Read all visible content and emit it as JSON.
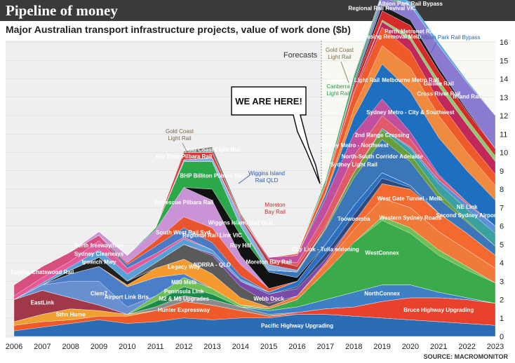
{
  "chart_data": {
    "type": "area",
    "title": "Pipeline of money",
    "subtitle": "Major Australian transport infrastructure projects, value of work done ($b)",
    "x": [
      2006,
      2007,
      2008,
      2009,
      2010,
      2011,
      2012,
      2013,
      2014,
      2015,
      2016,
      2017,
      2018,
      2019,
      2020,
      2021,
      2022,
      2023
    ],
    "ylim": [
      0,
      16
    ],
    "ytick_labels": [
      "0",
      "1",
      "2",
      "3",
      "4",
      "5",
      "6",
      "7",
      "8",
      "9",
      "10",
      "11",
      "12",
      "13",
      "14",
      "15",
      "16"
    ],
    "xtick_labels": [
      "2006",
      "2007",
      "2008",
      "2009",
      "2010",
      "2011",
      "2012",
      "2013",
      "2014",
      "2015",
      "2016",
      "2017",
      "2018",
      "2019",
      "2020",
      "2021",
      "2022",
      "2023"
    ],
    "forecast_from": 2017,
    "forecast_label": "Forecasts",
    "grid": true,
    "source": "SOURCE: MACROMONITOR",
    "series": [
      {
        "name": "Pacific Highway Upgrading",
        "color": "#2a6db5",
        "values": [
          0.3,
          0.5,
          0.7,
          0.9,
          0.7,
          0.8,
          1.0,
          0.9,
          1.0,
          1.0,
          1.2,
          1.2,
          1.1,
          1.0,
          0.9,
          0.8,
          0.7,
          0.6
        ]
      },
      {
        "name": "Hunter Expressway",
        "color": "#ef5a2a",
        "values": [
          0.3,
          0.3,
          0.2,
          0.2,
          0.4,
          0.6,
          0.9,
          0.8,
          0.4,
          0.1,
          0,
          0,
          0,
          0,
          0,
          0,
          0,
          0
        ]
      },
      {
        "name": "Bruce Highway Upgrading",
        "color": "#e8412c",
        "values": [
          0,
          0,
          0,
          0,
          0,
          0,
          0,
          0,
          0,
          0,
          0.1,
          0.3,
          0.5,
          0.9,
          1.2,
          1.3,
          1.3,
          1.2
        ]
      },
      {
        "name": "Sthn Hume",
        "color": "#f0a030",
        "values": [
          0.2,
          0.4,
          0.6,
          0.3,
          0.1,
          0,
          0,
          0,
          0,
          0,
          0,
          0,
          0,
          0,
          0,
          0,
          0,
          0
        ]
      },
      {
        "name": "M2 & M5 Upgrades",
        "color": "#8a8a8a",
        "values": [
          0,
          0,
          0,
          0,
          0,
          0.2,
          0.3,
          0.3,
          0.2,
          0.1,
          0,
          0,
          0,
          0,
          0,
          0,
          0,
          0
        ]
      },
      {
        "name": "NorthConnex",
        "color": "#3f7fc6",
        "values": [
          0,
          0,
          0,
          0,
          0,
          0,
          0,
          0,
          0,
          0.2,
          0.3,
          0.5,
          0.8,
          0.9,
          0.7,
          0.3,
          0.1,
          0
        ]
      },
      {
        "name": "EastLink",
        "color": "#a03848",
        "values": [
          1.2,
          1.3,
          0.6,
          0.3,
          0,
          0,
          0,
          0,
          0,
          0,
          0,
          0,
          0,
          0,
          0,
          0,
          0,
          0
        ]
      },
      {
        "name": "Peninsula Link",
        "color": "#1b8a4a",
        "values": [
          0,
          0,
          0,
          0,
          0,
          0.3,
          0.5,
          0.3,
          0,
          0,
          0,
          0,
          0,
          0,
          0,
          0,
          0,
          0
        ]
      },
      {
        "name": "WestConnex",
        "color": "#3aaa4a",
        "values": [
          0,
          0,
          0,
          0,
          0,
          0,
          0,
          0,
          0,
          0.1,
          0.4,
          1.5,
          2.7,
          3.5,
          2.8,
          2.0,
          1.5,
          1.1
        ]
      },
      {
        "name": "M80 Melb",
        "color": "#6fbf59",
        "values": [
          0,
          0,
          0,
          0,
          0,
          0.3,
          0.5,
          0.3,
          0.1,
          0,
          0,
          0,
          0,
          0.2,
          0.3,
          0.3,
          0.2,
          0
        ]
      },
      {
        "name": "Clem7",
        "color": "#6a8fd0",
        "values": [
          0,
          0.3,
          0.9,
          1.3,
          0.4,
          0,
          0,
          0,
          0,
          0,
          0,
          0,
          0,
          0,
          0,
          0,
          0,
          0
        ]
      },
      {
        "name": "Airport Link Bris.",
        "color": "#4a7ec8",
        "values": [
          0,
          0,
          0.4,
          0.8,
          1.1,
          1.0,
          0.2,
          0,
          0,
          0,
          0,
          0,
          0,
          0,
          0,
          0,
          0,
          0
        ]
      },
      {
        "name": "Western Sydney Roads",
        "color": "#f07a3a",
        "values": [
          0,
          0,
          0,
          0,
          0,
          0,
          0,
          0,
          0,
          0.1,
          0.2,
          0.4,
          0.7,
          1.0,
          1.1,
          1.0,
          0.9,
          0.8
        ]
      },
      {
        "name": "Legacy Way",
        "color": "#f59a2f",
        "values": [
          0,
          0,
          0,
          0,
          0.1,
          0.5,
          0.8,
          0.8,
          0.4,
          0,
          0,
          0,
          0,
          0,
          0,
          0,
          0,
          0
        ]
      },
      {
        "name": "Ipswich Mwy",
        "color": "#222222",
        "values": [
          0,
          0,
          0.2,
          0.5,
          0.2,
          0,
          0,
          0,
          0,
          0,
          0,
          0,
          0,
          0,
          0,
          0,
          0,
          0
        ]
      },
      {
        "name": "West Gate Tunnel - Melb.",
        "color": "#f4692f",
        "values": [
          0,
          0,
          0,
          0,
          0,
          0,
          0,
          0,
          0,
          0,
          0,
          0.1,
          0.4,
          0.8,
          1.0,
          1.0,
          0.9,
          0.7
        ]
      },
      {
        "name": "NDRRA - QLD",
        "color": "#5a5a5a",
        "values": [
          0,
          0,
          0,
          0,
          0,
          0.3,
          0.8,
          1.0,
          0.6,
          0.2,
          0,
          0,
          0,
          0,
          0,
          0,
          0,
          0
        ]
      },
      {
        "name": "Webb Dock",
        "color": "#7b4aa8",
        "values": [
          0,
          0,
          0,
          0,
          0,
          0,
          0,
          0.1,
          0.3,
          0.5,
          0.4,
          0.2,
          0,
          0,
          0,
          0,
          0,
          0
        ]
      },
      {
        "name": "Toowoomba",
        "color": "#2f4a7a",
        "values": [
          0,
          0,
          0,
          0,
          0,
          0,
          0,
          0,
          0,
          0,
          0.1,
          0.3,
          0.4,
          0.3,
          0.1,
          0,
          0,
          0
        ]
      },
      {
        "name": "City Link - Tulla widening",
        "color": "#2b6fc0",
        "values": [
          0,
          0,
          0,
          0,
          0,
          0,
          0,
          0,
          0,
          0.1,
          0.3,
          0.5,
          0.5,
          0.3,
          0.1,
          0,
          0,
          0
        ]
      },
      {
        "name": "Sydney Clearways",
        "color": "#5aa0d8",
        "values": [
          0,
          0.1,
          0.2,
          0.4,
          0.4,
          0.3,
          0.3,
          0.2,
          0.1,
          0,
          0,
          0,
          0,
          0,
          0,
          0,
          0,
          0
        ]
      },
      {
        "name": "Perth freeway/hwy",
        "color": "#e35a9a",
        "values": [
          0.2,
          0.3,
          0.3,
          0.5,
          0.3,
          0.2,
          0.1,
          0,
          0,
          0,
          0,
          0,
          0,
          0,
          0,
          0,
          0,
          0
        ]
      },
      {
        "name": "Epping-Chatswood Rail",
        "color": "#d64f7e",
        "values": [
          0.6,
          0.6,
          0.5,
          0.3,
          0,
          0,
          0,
          0,
          0,
          0,
          0,
          0,
          0,
          0,
          0,
          0,
          0,
          0
        ]
      },
      {
        "name": "South West Rail Syd.",
        "color": "#4b79c4",
        "values": [
          0,
          0,
          0,
          0,
          0.2,
          0.4,
          0.5,
          0.4,
          0.2,
          0,
          0,
          0,
          0,
          0,
          0,
          0,
          0,
          0
        ]
      },
      {
        "name": "Regional Rail Link VIC",
        "color": "#e8542d",
        "values": [
          0,
          0,
          0,
          0,
          0.1,
          0.3,
          0.6,
          0.8,
          0.6,
          0.2,
          0,
          0,
          0,
          0,
          0,
          0,
          0,
          0
        ]
      },
      {
        "name": "Fortescue Pilbara Rail",
        "color": "#c993d6",
        "values": [
          0,
          0,
          0,
          0.2,
          0.4,
          0.6,
          1.6,
          1.5,
          0.5,
          0,
          0,
          0,
          0,
          0,
          0,
          0,
          0,
          0
        ]
      },
      {
        "name": "Roy Hill",
        "color": "#111111",
        "values": [
          0,
          0,
          0,
          0,
          0,
          0,
          0,
          0.6,
          1.1,
          0.9,
          0.2,
          0,
          0,
          0,
          0,
          0,
          0,
          0
        ]
      },
      {
        "name": "BHP Billiton Pilbara Rail",
        "color": "#2aa84a",
        "values": [
          0,
          0,
          0,
          0,
          0,
          0.1,
          1.4,
          1.5,
          0.5,
          0,
          0,
          0,
          0,
          0,
          0,
          0,
          0,
          0
        ]
      },
      {
        "name": "North-South Corridor Adelaide",
        "color": "#3a76b8",
        "values": [
          0,
          0,
          0,
          0,
          0,
          0,
          0,
          0,
          0,
          0.1,
          0.3,
          0.8,
          1.5,
          1.8,
          1.3,
          0.8,
          0.6,
          0.5
        ]
      },
      {
        "name": "2nd Range Crossing",
        "color": "#6a9e3a",
        "values": [
          0,
          0,
          0,
          0,
          0,
          0,
          0,
          0,
          0,
          0,
          0,
          0.1,
          0.3,
          0.5,
          0.4,
          0.3,
          0.1,
          0
        ]
      },
      {
        "name": "Second Sydney Airport",
        "color": "#3aa0a0",
        "values": [
          0,
          0,
          0,
          0,
          0,
          0,
          0,
          0,
          0,
          0,
          0,
          0,
          0,
          0.1,
          0.3,
          0.5,
          0.6,
          0.7
        ]
      },
      {
        "name": "NE Link",
        "color": "#5b8fd8",
        "values": [
          0,
          0,
          0,
          0,
          0,
          0,
          0,
          0,
          0,
          0,
          0,
          0,
          0,
          0,
          0.1,
          0.2,
          0.3,
          0.4
        ]
      },
      {
        "name": "Wiggins Island Rail QLD",
        "color": "#8ab0e0",
        "values": [
          0,
          0,
          0,
          0,
          0,
          0,
          0.1,
          0.2,
          0.4,
          0.3,
          0.1,
          0,
          0,
          0,
          0,
          0,
          0,
          0
        ]
      },
      {
        "name": "Moreton Bay Rail",
        "color": "#c03a3a",
        "values": [
          0,
          0,
          0,
          0,
          0,
          0,
          0,
          0,
          0.1,
          0.3,
          0.2,
          0.1,
          0,
          0,
          0,
          0,
          0,
          0
        ]
      },
      {
        "name": "Sydney Light Rail",
        "color": "#e05a6a",
        "values": [
          0,
          0,
          0,
          0,
          0,
          0,
          0,
          0,
          0,
          0,
          0.2,
          0.6,
          0.9,
          0.7,
          0.4,
          0.2,
          0.1,
          0
        ]
      },
      {
        "name": "Sydney Metro - Northwest",
        "color": "#c04fa0",
        "values": [
          0,
          0,
          0,
          0,
          0,
          0,
          0,
          0,
          0,
          0.1,
          0.4,
          0.9,
          1.2,
          0.9,
          0.4,
          0.1,
          0,
          0
        ]
      },
      {
        "name": "Sydney Metro - City & Southwest",
        "color": "#1f6fc0",
        "values": [
          0,
          0,
          0,
          0,
          0,
          0,
          0,
          0,
          0,
          0,
          0,
          0.2,
          0.9,
          1.9,
          2.2,
          2.0,
          1.7,
          1.4
        ]
      },
      {
        "name": "Melbourne Metro Rail",
        "color": "#f08a40",
        "values": [
          0,
          0,
          0,
          0,
          0,
          0,
          0,
          0,
          0,
          0,
          0,
          0.1,
          0.5,
          1.0,
          1.3,
          1.2,
          1.0,
          0.8
        ]
      },
      {
        "name": "Level Crossing Removal Melb.",
        "color": "#ee5a2a",
        "values": [
          0,
          0,
          0,
          0,
          0,
          0,
          0,
          0,
          0,
          0,
          0.1,
          0.4,
          0.8,
          1.0,
          0.9,
          0.8,
          0.7,
          0.6
        ]
      },
      {
        "name": "Cross River Rail",
        "color": "#c0285a",
        "values": [
          0,
          0,
          0,
          0,
          0,
          0,
          0,
          0,
          0,
          0,
          0,
          0,
          0.1,
          0.3,
          0.6,
          0.8,
          0.8,
          0.7
        ]
      },
      {
        "name": "Galilee Rail",
        "color": "#8fc870",
        "values": [
          0,
          0,
          0,
          0,
          0,
          0,
          0,
          0,
          0,
          0,
          0,
          0,
          0,
          0.1,
          0.2,
          0.3,
          0.3,
          0.3
        ]
      },
      {
        "name": "Perth Metronet Rail",
        "color": "#d42a2a",
        "values": [
          0,
          0,
          0,
          0,
          0,
          0,
          0,
          0,
          0,
          0,
          0,
          0.1,
          0.3,
          0.5,
          0.6,
          0.5,
          0.4,
          0.4
        ]
      },
      {
        "name": "Rio Tinto Pilbara Rail",
        "color": "#d63a3a",
        "values": [
          0,
          0,
          0,
          0,
          0,
          0,
          0.4,
          0.3,
          0.1,
          0,
          0,
          0,
          0,
          0,
          0,
          0,
          0,
          0
        ]
      },
      {
        "name": "Regional Rail Revival VIC",
        "color": "#1a1a1a",
        "values": [
          0,
          0,
          0,
          0,
          0,
          0,
          0,
          0,
          0,
          0,
          0,
          0,
          0.1,
          0.3,
          0.3,
          0.2,
          0.1,
          0
        ]
      },
      {
        "name": "Inland Rail",
        "color": "#8a7ad0",
        "values": [
          0,
          0,
          0,
          0,
          0,
          0,
          0,
          0,
          0,
          0,
          0,
          0,
          0.1,
          0.4,
          0.8,
          1.2,
          1.5,
          1.8
        ]
      },
      {
        "name": "Canberra Light Rail",
        "color": "#2aa85a",
        "values": [
          0,
          0,
          0,
          0,
          0,
          0,
          0,
          0,
          0,
          0,
          0,
          0.2,
          0.3,
          0.1,
          0,
          0,
          0,
          0
        ]
      },
      {
        "name": "Gold Coast Light Rail",
        "color": "#7a7a7a",
        "values": [
          0,
          0,
          0,
          0,
          0,
          0,
          0.1,
          0.3,
          0.1,
          0,
          0,
          0,
          0.1,
          0.1,
          0,
          0,
          0,
          0
        ]
      },
      {
        "name": "Albion Park Rail Bypass",
        "color": "#5aa8e0",
        "values": [
          0,
          0,
          0,
          0,
          0,
          0,
          0,
          0,
          0,
          0,
          0,
          0,
          0,
          0.1,
          0.2,
          0.2,
          0.1,
          0
        ]
      }
    ],
    "annotations": {
      "callout": "WE ARE HERE!",
      "gold_coast_1": "Gold Coast",
      "gold_coast_2": "Light Rail",
      "gold_coast_b1": "Gold Coast",
      "gold_coast_b2": "Light Rail",
      "canberra_1": "Canberra",
      "canberra_2": "Light Rail",
      "wiggins_1": "Wiggins Island",
      "wiggins_2": "Rail QLD",
      "moreton_1": "Moreton",
      "moreton_2": "Bay Rail",
      "albion": "Albion Park Rail Bypass"
    }
  }
}
